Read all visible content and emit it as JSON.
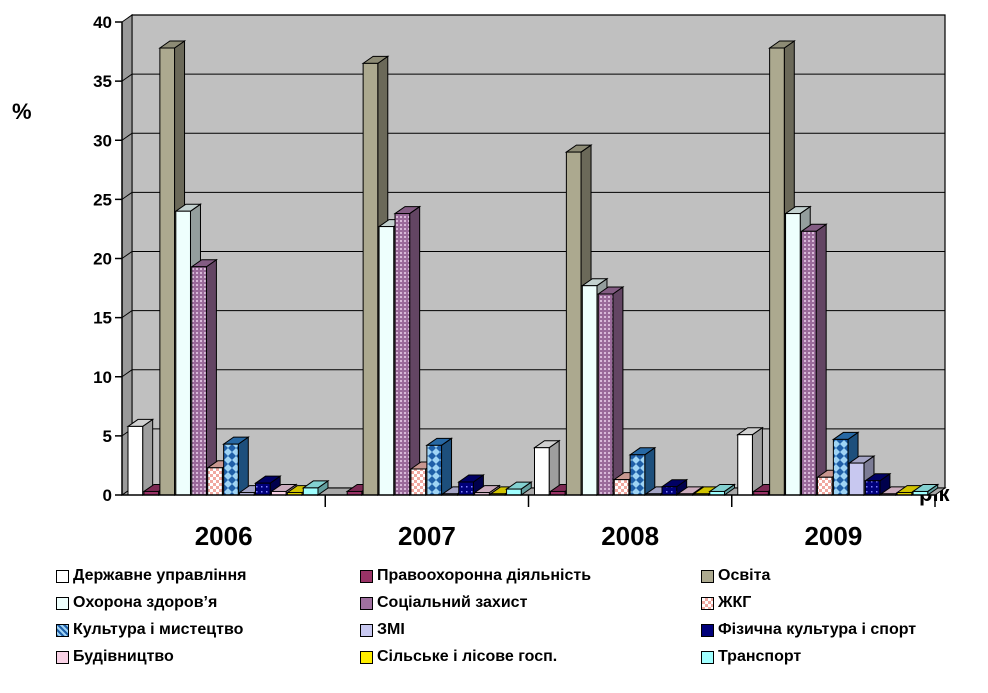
{
  "chart_data": {
    "type": "bar",
    "title": "",
    "xlabel": "рік",
    "ylabel": "%",
    "ylim": [
      0,
      40
    ],
    "yticks": [
      "0",
      "5",
      "10",
      "15",
      "20",
      "25",
      "30",
      "35",
      "40"
    ],
    "grid": true,
    "legend_position": "bottom",
    "categories": [
      "2006",
      "2007",
      "2008",
      "2009"
    ],
    "series": [
      {
        "name": "Державне управління",
        "values": [
          5.8,
          0,
          4.0,
          5.1
        ],
        "color": "#ffffff",
        "pattern": "none"
      },
      {
        "name": "Правоохоронна діяльність",
        "values": [
          0.3,
          0.3,
          0.3,
          0.3
        ],
        "color": "#993366",
        "pattern": "none"
      },
      {
        "name": "Освіта",
        "values": [
          37.8,
          36.5,
          29.0,
          37.8
        ],
        "color": "#aca98f",
        "pattern": "none"
      },
      {
        "name": "Охорона здоров’я",
        "values": [
          24.0,
          22.7,
          17.7,
          23.8
        ],
        "color": "#eefffd",
        "pattern": "none"
      },
      {
        "name": "Соціальний захист",
        "values": [
          19.3,
          23.8,
          17.0,
          22.3
        ],
        "color": "#a070a0",
        "pattern": "dots"
      },
      {
        "name": "ЖКГ",
        "values": [
          2.3,
          2.2,
          1.3,
          1.5
        ],
        "color": "#f4b8b0",
        "pattern": "checker"
      },
      {
        "name": "Культура і мистецтво",
        "values": [
          4.3,
          4.2,
          3.4,
          4.7
        ],
        "color": "#2f7fc8",
        "pattern": "diamond"
      },
      {
        "name": "ЗМІ",
        "values": [
          0.2,
          0.1,
          0.1,
          2.7
        ],
        "color": "#c8c8f0",
        "pattern": "none"
      },
      {
        "name": "Фізична культура і спорт",
        "values": [
          1.0,
          1.1,
          0.7,
          1.2
        ],
        "color": "#00007a",
        "pattern": "dots"
      },
      {
        "name": "Будівництво",
        "values": [
          0.3,
          0.2,
          0.1,
          0.1
        ],
        "color": "#f9d2e6",
        "pattern": "none"
      },
      {
        "name": "Сільське і лісове госп.",
        "values": [
          0.2,
          0.1,
          0.1,
          0.2
        ],
        "color": "#ffee00",
        "pattern": "none"
      },
      {
        "name": "Транспорт",
        "values": [
          0.6,
          0.5,
          0.3,
          0.3
        ],
        "color": "#a0ffff",
        "pattern": "none"
      }
    ]
  }
}
